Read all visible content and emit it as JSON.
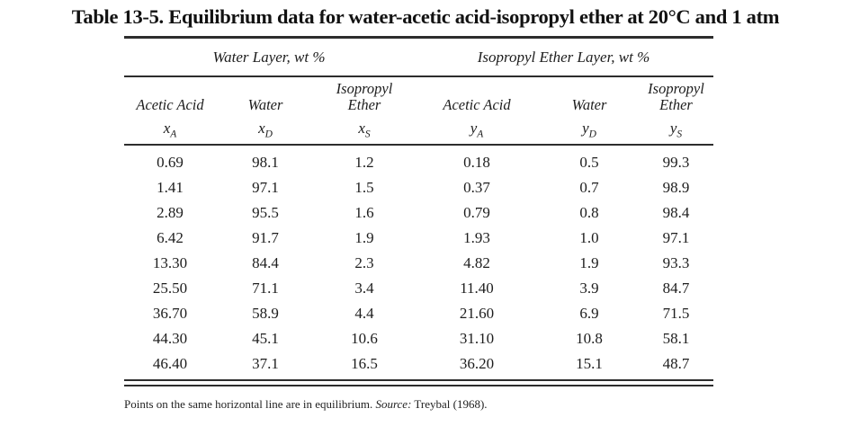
{
  "title": "Table 13-5. Equilibrium data for water-acetic acid-isopropyl ether at 20°C and 1 atm",
  "table": {
    "group_headers": [
      "Water Layer, wt %",
      "Isopropyl Ether Layer, wt %"
    ],
    "columns": [
      {
        "label_lines": [
          "Acetic Acid"
        ],
        "symbol": "x",
        "subscript": "A"
      },
      {
        "label_lines": [
          "Water"
        ],
        "symbol": "x",
        "subscript": "D"
      },
      {
        "label_lines": [
          "Isopropyl",
          "Ether"
        ],
        "symbol": "x",
        "subscript": "S"
      },
      {
        "label_lines": [
          "Acetic Acid"
        ],
        "symbol": "y",
        "subscript": "A"
      },
      {
        "label_lines": [
          "Water"
        ],
        "symbol": "y",
        "subscript": "D"
      },
      {
        "label_lines": [
          "Isopropyl",
          "Ether"
        ],
        "symbol": "y",
        "subscript": "S"
      }
    ],
    "rows": [
      [
        "0.69",
        "98.1",
        "1.2",
        "0.18",
        "0.5",
        "99.3"
      ],
      [
        "1.41",
        "97.1",
        "1.5",
        "0.37",
        "0.7",
        "98.9"
      ],
      [
        "2.89",
        "95.5",
        "1.6",
        "0.79",
        "0.8",
        "98.4"
      ],
      [
        "6.42",
        "91.7",
        "1.9",
        "1.93",
        "1.0",
        "97.1"
      ],
      [
        "13.30",
        "84.4",
        "2.3",
        "4.82",
        "1.9",
        "93.3"
      ],
      [
        "25.50",
        "71.1",
        "3.4",
        "11.40",
        "3.9",
        "84.7"
      ],
      [
        "36.70",
        "58.9",
        "4.4",
        "21.60",
        "6.9",
        "71.5"
      ],
      [
        "44.30",
        "45.1",
        "10.6",
        "31.10",
        "10.8",
        "58.1"
      ],
      [
        "46.40",
        "37.1",
        "16.5",
        "36.20",
        "15.1",
        "48.7"
      ]
    ]
  },
  "footnote": {
    "text": "Points on the same horizontal line are in equilibrium.",
    "source_label": "Source:",
    "source_value": "Treybal (1968)."
  },
  "colors": {
    "background": "#ffffff",
    "text": "#1d1d1d",
    "rule": "#2d2d2d"
  }
}
